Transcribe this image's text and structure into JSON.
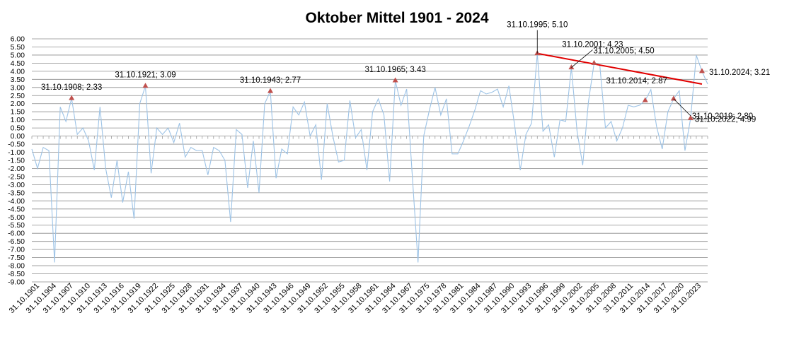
{
  "chart_data": {
    "type": "line",
    "title": "Oktober Mittel 1901 - 2024",
    "xlabel": "",
    "ylabel": "",
    "ylim": [
      -9.0,
      6.0
    ],
    "y_ticks": [
      "6.00",
      "5.50",
      "5.00",
      "4.50",
      "4.00",
      "3.50",
      "3.00",
      "2.50",
      "2.00",
      "1.50",
      "1.00",
      "0.50",
      "0.00",
      "-0.50",
      "-1.00",
      "-1.50",
      "-2.00",
      "-2.50",
      "-3.00",
      "-3.50",
      "-4.00",
      "-4.50",
      "-5.00",
      "-5.50",
      "-6.00",
      "-6.50",
      "-7.00",
      "-7.50",
      "-8.00",
      "-8.50",
      "-9.00"
    ],
    "x_ticks": [
      "31.10.1901",
      "31.10.1904",
      "31.10.1907",
      "31.10.1910",
      "31.10.1913",
      "31.10.1916",
      "31.10.1919",
      "31.10.1922",
      "31.10.1925",
      "31.10.1928",
      "31.10.1931",
      "31.10.1934",
      "31.10.1937",
      "31.10.1940",
      "31.10.1943",
      "31.10.1946",
      "31.10.1949",
      "31.10.1952",
      "31.10.1955",
      "31.10.1958",
      "31.10.1961",
      "31.10.1964",
      "31.10.1967",
      "31.10.1975",
      "31.10.1978",
      "31.10.1981",
      "31.10.1984",
      "31.10.1987",
      "31.10.1990",
      "31.10.1993",
      "31.10.1996",
      "31.10.1999",
      "31.10.2002",
      "31.10.2005",
      "31.10.2008",
      "31.10.2011",
      "31.10.2014",
      "31.10.2017",
      "31.10.2020",
      "31.10.2023"
    ],
    "line_color": "#9dc3e6",
    "trend_color": "#e00000",
    "marker_color": "#c0504d",
    "series": [
      {
        "values": [
          -0.8,
          -2.0,
          -0.7,
          -0.9,
          -7.8,
          1.8,
          0.9,
          2.33,
          0.1,
          0.5,
          -0.3,
          -2.1,
          1.8,
          -2.0,
          -3.8,
          -1.5,
          -4.1,
          -2.2,
          -5.1,
          2.0,
          3.09,
          -2.3,
          0.5,
          0.1,
          0.5,
          -0.4,
          0.8,
          -1.3,
          -0.7,
          -0.9,
          -0.9,
          -2.4,
          -0.7,
          -0.9,
          -1.5,
          -5.3,
          0.4,
          0.1,
          -3.2,
          -0.3,
          -3.5,
          2.0,
          2.77,
          -2.6,
          -0.8,
          -1.1,
          1.8,
          1.3,
          2.1,
          0.0,
          0.7,
          -2.7,
          2.0,
          0.0,
          -1.6,
          -1.5,
          2.2,
          -0.1,
          0.4,
          -2.1,
          1.5,
          2.3,
          1.3,
          -2.8,
          3.43,
          1.9,
          2.9,
          -2.5,
          -7.8,
          0.0,
          1.6,
          3.0,
          1.3,
          2.3,
          -1.1,
          -1.1,
          -0.3,
          0.6,
          1.6,
          2.8,
          2.6,
          2.7,
          2.9,
          1.8,
          3.1,
          0.7,
          -2.1,
          0.1,
          0.8,
          5.1,
          0.3,
          0.7,
          -1.3,
          1.0,
          0.9,
          4.23,
          0.3,
          -1.8,
          2.1,
          4.5,
          4.4,
          0.5,
          0.9,
          -0.3,
          0.5,
          1.9,
          1.8,
          1.9,
          2.2,
          2.87,
          0.6,
          -0.8,
          1.5,
          2.3,
          2.8,
          -0.9,
          1.1,
          4.99,
          4.0,
          3.21
        ]
      }
    ],
    "annotations": [
      {
        "index": 7,
        "label": "31.10.1908; 2.33"
      },
      {
        "index": 20,
        "label": "31.10.1921; 3.09"
      },
      {
        "index": 42,
        "label": "31.10.1943; 2.77"
      },
      {
        "index": 64,
        "label": "31.10.1965; 3.43"
      },
      {
        "index": 89,
        "label": "31.10.1995; 5.10"
      },
      {
        "index": 95,
        "label": "31.10.2001; 4.23"
      },
      {
        "index": 99,
        "label": "31.10.2005; 4.50"
      },
      {
        "index": 108,
        "label": "31.10.2014; 2.87"
      },
      {
        "index": 113,
        "label": "31.10.2019; 2.80"
      },
      {
        "index": 116,
        "label": "31.10.2022; 4.99"
      },
      {
        "index": 118,
        "label": "31.10.2024; 3.21"
      }
    ],
    "trend_line": [
      {
        "index": 89,
        "value": 5.1
      },
      {
        "index": 118,
        "value": 3.21
      }
    ],
    "grid": true,
    "legend": "none"
  }
}
